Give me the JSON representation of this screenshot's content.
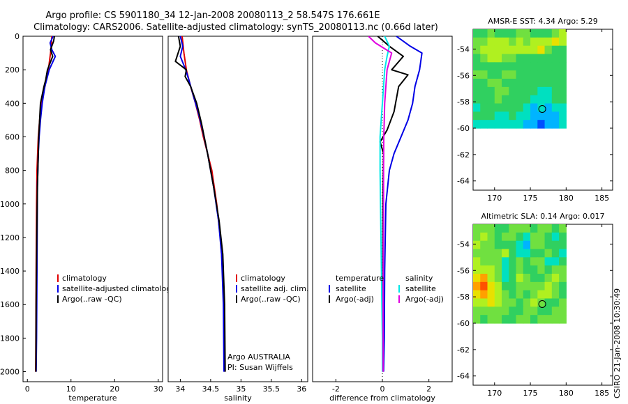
{
  "title_lines": [
    "Argo profile: CS 5901180_34 12-Jan-2008 20080113_2 58.547S 176.661E",
    "Climatology: CARS2006. Satellite-adjusted climatology: synTS_20080113.nc (0.66d later)"
  ],
  "side_label": "CSIRO 21-Jan-2008 10:30:49",
  "colors": {
    "climatology": "#e00000",
    "satellite": "#0000e6",
    "argo": "#000000",
    "sal_satellite": "#00e8e8",
    "sal_argo": "#e000e0",
    "marker": "#000000"
  },
  "chart_data": [
    {
      "type": "line",
      "xlabel": "temperature",
      "ylabel": "",
      "xlim": [
        -1,
        31
      ],
      "ylim": [
        2060,
        0
      ],
      "xticks": [
        0,
        10,
        20,
        30
      ],
      "yticks": [
        0,
        200,
        400,
        600,
        800,
        1000,
        1200,
        1400,
        1600,
        1800,
        2000
      ],
      "legend": {
        "position": "lower-right",
        "entries": [
          "climatology",
          "satellite-adjusted climatology",
          "Argo(..raw -QC)"
        ]
      },
      "series": [
        {
          "name": "climatology",
          "color": "#e00000",
          "x": [
            5.6,
            5.5,
            5.3,
            4.8,
            4.0,
            3.3,
            2.8,
            2.5,
            2.35,
            2.2,
            2.1,
            2.0,
            1.95,
            1.9
          ],
          "y": [
            0,
            50,
            100,
            200,
            300,
            400,
            500,
            600,
            700,
            800,
            1000,
            1400,
            1800,
            2000
          ]
        },
        {
          "name": "satellite-adjusted climatology",
          "color": "#0000e6",
          "x": [
            5.9,
            5.2,
            5.6,
            6.4,
            5.0,
            4.0,
            3.4,
            3.0,
            2.7,
            2.5,
            2.3,
            2.2,
            2.1,
            2.0
          ],
          "y": [
            0,
            40,
            80,
            120,
            200,
            300,
            400,
            500,
            600,
            700,
            900,
            1400,
            1800,
            2000
          ]
        },
        {
          "name": "Argo(..raw -QC)",
          "color": "#000000",
          "x": [
            6.2,
            6.0,
            5.3,
            5.8,
            4.6,
            4.2,
            3.8,
            3.0,
            2.6,
            2.5,
            2.3,
            2.15,
            2.0,
            1.95
          ],
          "y": [
            0,
            30,
            80,
            120,
            200,
            260,
            300,
            400,
            600,
            700,
            900,
            1200,
            1600,
            2000
          ]
        }
      ]
    },
    {
      "type": "line",
      "xlabel": "salinity",
      "ylabel": "",
      "xlim": [
        33.8,
        36.1
      ],
      "ylim": [
        2060,
        0
      ],
      "xticks": [
        34,
        34.5,
        35,
        35.5,
        36
      ],
      "xtick_labels": [
        "34",
        "34.5",
        "35",
        "35.5",
        "36"
      ],
      "legend": {
        "position": "lower-right",
        "entries": [
          "climatology",
          "satellite adj. clim.",
          "Argo(..raw -QC)"
        ]
      },
      "annotations": [
        "Argo AUSTRALIA",
        "PI: Susan Wijffels"
      ],
      "series": [
        {
          "name": "climatology",
          "color": "#e00000",
          "x": [
            34.03,
            34.06,
            34.1,
            34.17,
            34.25,
            34.32,
            34.38,
            34.45,
            34.52,
            34.6,
            34.66,
            34.7,
            34.72,
            34.73
          ],
          "y": [
            0,
            100,
            200,
            300,
            400,
            500,
            600,
            700,
            800,
            1000,
            1200,
            1400,
            1700,
            2000
          ]
        },
        {
          "name": "satellite adj. clim.",
          "color": "#0000e6",
          "x": [
            34.0,
            34.04,
            34.0,
            34.09,
            34.14,
            34.22,
            34.3,
            34.38,
            34.45,
            34.55,
            34.63,
            34.68,
            34.71,
            34.72
          ],
          "y": [
            0,
            60,
            120,
            200,
            260,
            360,
            460,
            580,
            700,
            900,
            1100,
            1300,
            1600,
            2000
          ]
        },
        {
          "name": "Argo(..raw -QC)",
          "color": "#000000",
          "x": [
            33.97,
            34.0,
            33.92,
            34.1,
            34.08,
            34.17,
            34.27,
            34.35,
            34.45,
            34.55,
            34.64,
            34.7,
            34.73,
            34.74
          ],
          "y": [
            0,
            60,
            150,
            200,
            240,
            300,
            400,
            520,
            700,
            900,
            1100,
            1300,
            1600,
            2000
          ]
        }
      ]
    },
    {
      "type": "line",
      "xlabel": "difference from climatology",
      "ylabel": "",
      "xlim": [
        -3,
        3
      ],
      "ylim": [
        2060,
        0
      ],
      "xticks": [
        -2,
        0,
        2
      ],
      "zero_line": true,
      "legend": {
        "position": "lower-center",
        "columns": [
          {
            "header": "temperature",
            "entries": [
              "satellite",
              "Argo(-adj)"
            ]
          },
          {
            "header": "salinity",
            "entries": [
              "satellite",
              "Argo(-adj)"
            ]
          }
        ]
      },
      "series": [
        {
          "name": "satellite",
          "group": "temperature",
          "color": "#0000e6",
          "x": [
            0.6,
            1.2,
            1.7,
            1.6,
            1.4,
            1.3,
            1.1,
            0.8,
            0.5,
            0.3,
            0.15,
            0.1,
            0.08,
            0.05
          ],
          "y": [
            0,
            60,
            100,
            200,
            300,
            400,
            500,
            600,
            700,
            800,
            1000,
            1400,
            1800,
            2000
          ]
        },
        {
          "name": "Argo(-adj)",
          "group": "temperature",
          "color": "#000000",
          "x": [
            -0.2,
            0.3,
            0.9,
            0.4,
            1.1,
            0.7,
            0.5,
            0.2,
            -0.1,
            0.05,
            0.03,
            0.02,
            0.02,
            0.02
          ],
          "y": [
            0,
            60,
            120,
            200,
            230,
            300,
            450,
            560,
            630,
            700,
            900,
            1300,
            1700,
            2000
          ]
        },
        {
          "name": "satellite",
          "group": "salinity",
          "color": "#00e8e8",
          "x": [
            0.1,
            0.3,
            0.2,
            0.1,
            0.05,
            0.0,
            -0.05,
            -0.1,
            -0.1,
            -0.08,
            -0.05,
            -0.02,
            0.0,
            0.0
          ],
          "y": [
            0,
            60,
            120,
            200,
            300,
            400,
            500,
            600,
            800,
            1000,
            1300,
            1600,
            1800,
            2000
          ]
        },
        {
          "name": "Argo(-adj)",
          "group": "salinity",
          "color": "#e000e0",
          "x": [
            -0.6,
            -0.3,
            0.4,
            0.2,
            0.15,
            0.1,
            0.08,
            0.06,
            0.05,
            0.05,
            0.04,
            0.03,
            0.03,
            0.03
          ],
          "y": [
            0,
            40,
            100,
            200,
            300,
            400,
            500,
            600,
            800,
            1000,
            1300,
            1600,
            1800,
            2000
          ]
        }
      ]
    },
    {
      "type": "heatmap",
      "title": "AMSR-E SST: 4.34  Argo: 5.29",
      "xlim": [
        167,
        186.5
      ],
      "ylim": [
        -64.7,
        -52.5
      ],
      "xticks": [
        170,
        175,
        180,
        185
      ],
      "yticks": [
        -54,
        -56,
        -58,
        -60,
        -62,
        -64
      ],
      "data_extent": {
        "lon": [
          167,
          180
        ],
        "lat": [
          -60,
          -52.5
        ]
      },
      "argo_position": {
        "lon": 176.661,
        "lat": -58.547
      },
      "colorscale": [
        "#0000c8",
        "#0050ff",
        "#00b4ff",
        "#00e0c0",
        "#30d060",
        "#70e040",
        "#b0f020",
        "#e8e000",
        "#ffa000",
        "#ff5000",
        "#e00000"
      ],
      "grid": [
        [
          4,
          4,
          5,
          4,
          4,
          4,
          5,
          5,
          4,
          4,
          4,
          5,
          6
        ],
        [
          5,
          5,
          6,
          6,
          6,
          5,
          6,
          5,
          6,
          6,
          6,
          7,
          6
        ],
        [
          5,
          6,
          6,
          6,
          6,
          6,
          6,
          6,
          6,
          7,
          5,
          4,
          4
        ],
        [
          4,
          5,
          6,
          6,
          5,
          5,
          4,
          4,
          4,
          4,
          4,
          4,
          4
        ],
        [
          4,
          4,
          4,
          4,
          4,
          4,
          4,
          4,
          4,
          4,
          4,
          4,
          4
        ],
        [
          5,
          5,
          4,
          4,
          5,
          5,
          4,
          4,
          4,
          4,
          4,
          4,
          4
        ],
        [
          4,
          4,
          5,
          5,
          4,
          4,
          4,
          4,
          4,
          4,
          4,
          4,
          4
        ],
        [
          4,
          4,
          4,
          5,
          5,
          4,
          4,
          4,
          4,
          3,
          3,
          4,
          4
        ],
        [
          4,
          4,
          4,
          5,
          4,
          4,
          4,
          4,
          3,
          3,
          3,
          4,
          4
        ],
        [
          3,
          4,
          4,
          4,
          4,
          4,
          4,
          3,
          2,
          3,
          2,
          3,
          3
        ],
        [
          4,
          4,
          4,
          3,
          3,
          4,
          3,
          3,
          2,
          2,
          2,
          2,
          3
        ],
        [
          3,
          3,
          3,
          3,
          3,
          3,
          3,
          2,
          2,
          1,
          2,
          2,
          3
        ]
      ]
    },
    {
      "type": "heatmap",
      "title": "Altimetric SLA: 0.14  Argo: 0.017",
      "xlim": [
        167,
        186.5
      ],
      "ylim": [
        -64.7,
        -52.5
      ],
      "xticks": [
        170,
        175,
        180,
        185
      ],
      "yticks": [
        -54,
        -56,
        -58,
        -60,
        -62,
        -64
      ],
      "data_extent": {
        "lon": [
          167,
          180
        ],
        "lat": [
          -60,
          -52.5
        ]
      },
      "argo_position": {
        "lon": 176.661,
        "lat": -58.547
      },
      "colorscale": [
        "#0000c8",
        "#0050ff",
        "#00b4ff",
        "#00e0c0",
        "#30d060",
        "#70e040",
        "#b0f020",
        "#e8e000",
        "#ffa000",
        "#ff5000",
        "#e00000"
      ],
      "grid": [
        [
          5,
          5,
          5,
          4,
          4,
          5,
          5,
          5,
          4,
          5,
          5,
          4,
          5
        ],
        [
          5,
          6,
          5,
          4,
          5,
          5,
          4,
          3,
          5,
          5,
          4,
          3,
          4
        ],
        [
          6,
          5,
          5,
          4,
          4,
          4,
          3,
          2,
          5,
          5,
          4,
          4,
          4
        ],
        [
          5,
          5,
          5,
          5,
          6,
          4,
          3,
          3,
          4,
          4,
          5,
          4,
          3
        ],
        [
          6,
          5,
          5,
          5,
          3,
          4,
          5,
          4,
          5,
          5,
          3,
          3,
          4
        ],
        [
          6,
          6,
          6,
          5,
          3,
          4,
          5,
          4,
          4,
          5,
          4,
          5,
          5
        ],
        [
          7,
          8,
          6,
          5,
          3,
          4,
          6,
          5,
          4,
          4,
          5,
          6,
          5
        ],
        [
          8,
          9,
          7,
          6,
          4,
          4,
          5,
          5,
          5,
          5,
          6,
          5,
          4
        ],
        [
          7,
          8,
          7,
          6,
          5,
          4,
          5,
          4,
          5,
          6,
          6,
          5,
          4
        ],
        [
          6,
          6,
          7,
          6,
          5,
          5,
          4,
          5,
          6,
          5,
          4,
          4,
          5
        ],
        [
          5,
          5,
          5,
          5,
          5,
          4,
          4,
          5,
          5,
          4,
          4,
          5,
          5
        ],
        [
          5,
          4,
          5,
          5,
          4,
          4,
          5,
          5,
          4,
          5,
          5,
          5,
          5
        ]
      ]
    }
  ]
}
